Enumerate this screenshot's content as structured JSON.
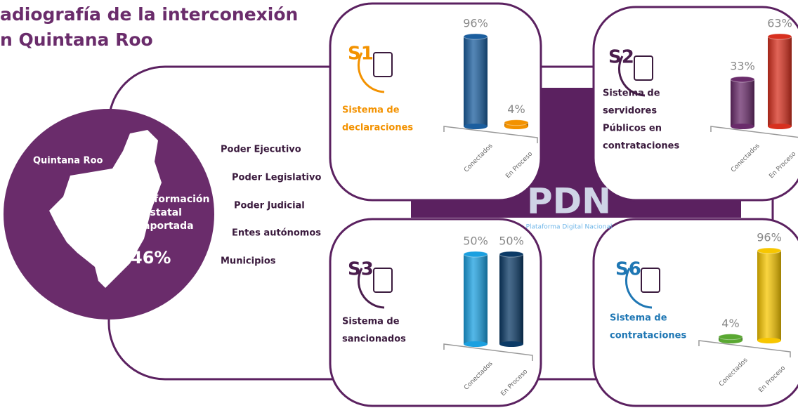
{
  "title_lines": [
    "adiografía de la interconexión",
    "n Quintana Roo"
  ],
  "map": {
    "label": "Quintana Roo",
    "info_lines": [
      "Información",
      "estatal",
      "aportada"
    ],
    "percent": "46%"
  },
  "branches": [
    "Poder Ejecutivo",
    "Poder Legislativo",
    "Poder Judicial",
    "Entes autónomos",
    "Municipios"
  ],
  "logo": {
    "name": "PDN",
    "subtitle": "Plataforma Digital Nacional"
  },
  "chart_data": [
    {
      "type": "bar",
      "badge": "S1",
      "badge_color": "#f39200",
      "title_lines": [
        "Sistema de",
        "declaraciones"
      ],
      "title_color": "#f39200",
      "categories": [
        "Conectados",
        "En Proceso"
      ],
      "values": [
        96,
        4
      ],
      "value_labels": [
        "96%",
        "4%"
      ],
      "colors": [
        "#1b5e9e",
        "#f39200"
      ]
    },
    {
      "type": "bar",
      "badge": "S2",
      "badge_color": "#4a1d4d",
      "title_lines": [
        "Sistema de",
        "servidores",
        "Públicos en",
        "contrataciones"
      ],
      "title_color": "#3a1a3d",
      "categories": [
        "Conectados",
        "En Proceso"
      ],
      "values": [
        33,
        63
      ],
      "value_labels": [
        "33%",
        "63%"
      ],
      "colors": [
        "#6a2c6b",
        "#d7301f"
      ]
    },
    {
      "type": "bar",
      "badge": "S3",
      "badge_color": "#4a1d4d",
      "title_lines": [
        "Sistema de",
        "sancionados"
      ],
      "title_color": "#3a1a3d",
      "categories": [
        "Conectados",
        "En Proceso"
      ],
      "values": [
        50,
        50
      ],
      "value_labels": [
        "50%",
        "50%"
      ],
      "colors": [
        "#1ba0e0",
        "#0b3a66"
      ]
    },
    {
      "type": "bar",
      "badge": "S6",
      "badge_color": "#1f77b4",
      "title_lines": [
        "Sistema de",
        "contrataciones"
      ],
      "title_color": "#1f77b4",
      "categories": [
        "Conectados",
        "En Proceso"
      ],
      "values": [
        4,
        96
      ],
      "value_labels": [
        "4%",
        "96%"
      ],
      "colors": [
        "#5aa832",
        "#f7c600"
      ]
    }
  ]
}
